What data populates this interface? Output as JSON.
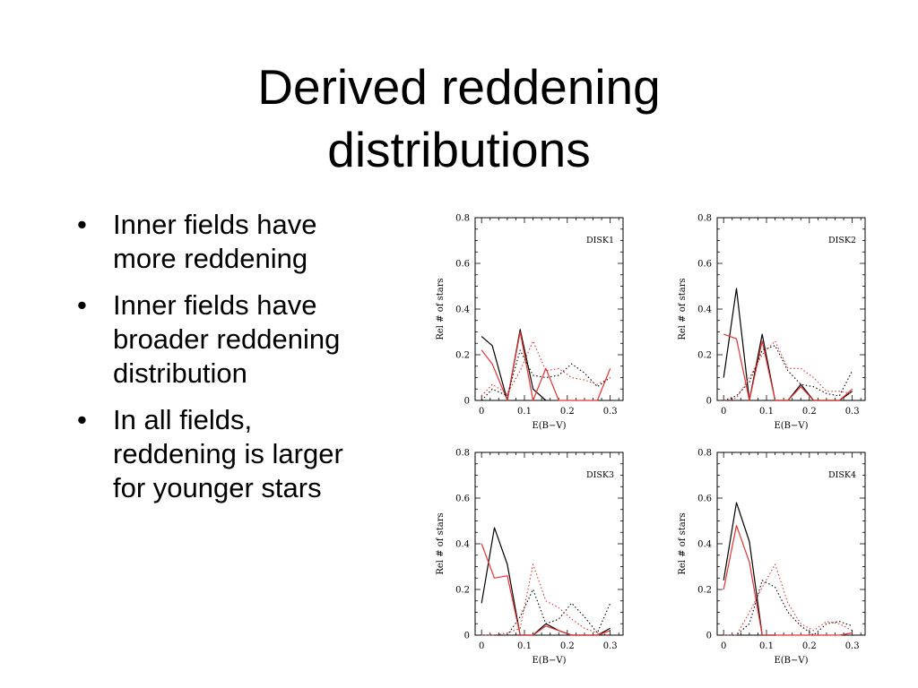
{
  "slide": {
    "title_lines": [
      "Derived reddening",
      "distributions"
    ],
    "bullets": [
      {
        "lines": [
          "Inner fields have",
          "more reddening"
        ]
      },
      {
        "lines": [
          "Inner fields have",
          "broader reddening",
          "distribution"
        ]
      },
      {
        "lines": [
          "In all fields,",
          "reddening is larger",
          "for younger stars"
        ]
      }
    ],
    "bullet_glyph": "•"
  },
  "chart_data": [
    {
      "type": "line",
      "title": "DISK1",
      "xlabel": "E(B−V)",
      "ylabel": "Rel # of stars",
      "xlim": [
        -0.015,
        0.33
      ],
      "ylim": [
        0,
        0.8
      ],
      "xticks": [
        0,
        0.1,
        0.2,
        0.3
      ],
      "xtick_labels": [
        "0",
        "0.1",
        "0.2",
        "0.3"
      ],
      "yticks": [
        0,
        0.2,
        0.4,
        0.6,
        0.8
      ],
      "ytick_labels": [
        "0",
        "0.2",
        "0.4",
        "0.6",
        "0.8"
      ],
      "series": [
        {
          "color": "#000000",
          "dash": "solid",
          "x": [
            0,
            0.025,
            0.06,
            0.09,
            0.12,
            0.15
          ],
          "y": [
            0.28,
            0.24,
            0.0,
            0.31,
            0.05,
            0.0
          ]
        },
        {
          "color": "#e8302e",
          "dash": "solid",
          "x": [
            0,
            0.025,
            0.06,
            0.09,
            0.12,
            0.15,
            0.18,
            0.21,
            0.24,
            0.27,
            0.3
          ],
          "y": [
            0.22,
            0.16,
            0.0,
            0.3,
            0.0,
            0.14,
            0.0,
            0.0,
            0.0,
            0.0,
            0.14
          ]
        },
        {
          "color": "#000000",
          "dash": "dotted",
          "x": [
            0,
            0.025,
            0.06,
            0.09,
            0.12,
            0.15,
            0.18,
            0.21,
            0.24,
            0.27,
            0.3
          ],
          "y": [
            0.0,
            0.05,
            0.02,
            0.22,
            0.11,
            0.1,
            0.11,
            0.16,
            0.12,
            0.06,
            0.1
          ]
        },
        {
          "color": "#e8302e",
          "dash": "dotted",
          "x": [
            0,
            0.025,
            0.06,
            0.09,
            0.12,
            0.15,
            0.18,
            0.21,
            0.24,
            0.27,
            0.3
          ],
          "y": [
            0.02,
            0.07,
            0.03,
            0.13,
            0.26,
            0.13,
            0.14,
            0.1,
            0.09,
            0.07,
            0.1
          ]
        }
      ]
    },
    {
      "type": "line",
      "title": "DISK2",
      "xlabel": "E(B−V)",
      "ylabel": "Rel # of stars",
      "xlim": [
        -0.015,
        0.33
      ],
      "ylim": [
        0,
        0.8
      ],
      "xticks": [
        0,
        0.1,
        0.2,
        0.3
      ],
      "xtick_labels": [
        "0",
        "0.1",
        "0.2",
        "0.3"
      ],
      "yticks": [
        0,
        0.2,
        0.4,
        0.6,
        0.8
      ],
      "ytick_labels": [
        "0",
        "0.2",
        "0.4",
        "0.6",
        "0.8"
      ],
      "series": [
        {
          "color": "#000000",
          "dash": "solid",
          "x": [
            0,
            0.03,
            0.06,
            0.09,
            0.12,
            0.15,
            0.18,
            0.21,
            0.24,
            0.27,
            0.3
          ],
          "y": [
            0.1,
            0.49,
            0.0,
            0.29,
            0.0,
            0.0,
            0.07,
            0.0,
            0.0,
            0.0,
            0.04
          ]
        },
        {
          "color": "#e8302e",
          "dash": "solid",
          "x": [
            0,
            0.03,
            0.06,
            0.09,
            0.12,
            0.15,
            0.18,
            0.21,
            0.24,
            0.27,
            0.3
          ],
          "y": [
            0.29,
            0.27,
            0.0,
            0.26,
            0.0,
            0.0,
            0.06,
            0.0,
            0.0,
            0.0,
            0.05
          ]
        },
        {
          "color": "#000000",
          "dash": "dotted",
          "x": [
            0,
            0.03,
            0.06,
            0.09,
            0.12,
            0.15,
            0.18,
            0.21,
            0.24,
            0.27,
            0.3
          ],
          "y": [
            0.0,
            0.02,
            0.08,
            0.22,
            0.24,
            0.13,
            0.07,
            0.06,
            0.03,
            0.02,
            0.13
          ]
        },
        {
          "color": "#e8302e",
          "dash": "dotted",
          "x": [
            0,
            0.03,
            0.06,
            0.09,
            0.12,
            0.15,
            0.18,
            0.21,
            0.24,
            0.27,
            0.3
          ],
          "y": [
            0.0,
            0.01,
            0.1,
            0.2,
            0.26,
            0.14,
            0.14,
            0.1,
            0.04,
            0.04,
            0.03
          ]
        }
      ]
    },
    {
      "type": "line",
      "title": "DISK3",
      "xlabel": "E(B−V)",
      "ylabel": "Rel # of stars",
      "xlim": [
        -0.015,
        0.33
      ],
      "ylim": [
        0,
        0.8
      ],
      "xticks": [
        0,
        0.1,
        0.2,
        0.3
      ],
      "xtick_labels": [
        "0",
        "0.1",
        "0.2",
        "0.3"
      ],
      "yticks": [
        0,
        0.2,
        0.4,
        0.6,
        0.8
      ],
      "ytick_labels": [
        "0",
        "0.2",
        "0.4",
        "0.6",
        "0.8"
      ],
      "series": [
        {
          "color": "#000000",
          "dash": "solid",
          "x": [
            0,
            0.03,
            0.06,
            0.09,
            0.12,
            0.15,
            0.18,
            0.21,
            0.24,
            0.27,
            0.3
          ],
          "y": [
            0.14,
            0.47,
            0.31,
            0.0,
            0.0,
            0.05,
            0.02,
            0.0,
            0.0,
            0.0,
            0.03
          ]
        },
        {
          "color": "#e8302e",
          "dash": "solid",
          "x": [
            0,
            0.03,
            0.06,
            0.09,
            0.12,
            0.15,
            0.18,
            0.21,
            0.24,
            0.27,
            0.3
          ],
          "y": [
            0.4,
            0.25,
            0.26,
            0.0,
            0.0,
            0.04,
            0.02,
            0.0,
            0.0,
            0.0,
            0.02
          ]
        },
        {
          "color": "#000000",
          "dash": "dotted",
          "x": [
            0,
            0.03,
            0.06,
            0.09,
            0.12,
            0.15,
            0.18,
            0.21,
            0.24,
            0.27,
            0.3
          ],
          "y": [
            0.0,
            0.0,
            0.0,
            0.08,
            0.2,
            0.05,
            0.07,
            0.14,
            0.08,
            0.01,
            0.14
          ]
        },
        {
          "color": "#e8302e",
          "dash": "dotted",
          "x": [
            0,
            0.03,
            0.06,
            0.09,
            0.12,
            0.15,
            0.18,
            0.21,
            0.24,
            0.27,
            0.3
          ],
          "y": [
            0.0,
            0.0,
            0.01,
            0.03,
            0.31,
            0.15,
            0.12,
            0.07,
            0.03,
            0.01,
            0.0
          ]
        }
      ]
    },
    {
      "type": "line",
      "title": "DISK4",
      "xlabel": "E(B−V)",
      "ylabel": "Rel # of stars",
      "xlim": [
        -0.015,
        0.33
      ],
      "ylim": [
        0,
        0.8
      ],
      "xticks": [
        0,
        0.1,
        0.2,
        0.3
      ],
      "xtick_labels": [
        "0",
        "0.1",
        "0.2",
        "0.3"
      ],
      "yticks": [
        0,
        0.2,
        0.4,
        0.6,
        0.8
      ],
      "ytick_labels": [
        "0",
        "0.2",
        "0.4",
        "0.6",
        "0.8"
      ],
      "series": [
        {
          "color": "#000000",
          "dash": "solid",
          "x": [
            0,
            0.03,
            0.06,
            0.09,
            0.12
          ],
          "y": [
            0.24,
            0.58,
            0.41,
            0.0,
            0.0
          ]
        },
        {
          "color": "#e8302e",
          "dash": "solid",
          "x": [
            0,
            0.03,
            0.06,
            0.09,
            0.12,
            0.15,
            0.18,
            0.21,
            0.24,
            0.27,
            0.3
          ],
          "y": [
            0.2,
            0.48,
            0.32,
            0.0,
            0.0,
            0.0,
            0.0,
            0.0,
            0.0,
            0.0,
            0.01
          ]
        },
        {
          "color": "#000000",
          "dash": "dotted",
          "x": [
            0,
            0.03,
            0.06,
            0.09,
            0.12,
            0.15,
            0.18,
            0.21,
            0.24,
            0.27,
            0.3
          ],
          "y": [
            0.0,
            0.0,
            0.05,
            0.24,
            0.21,
            0.1,
            0.04,
            0.0,
            0.05,
            0.06,
            0.04
          ]
        },
        {
          "color": "#e8302e",
          "dash": "dotted",
          "x": [
            0,
            0.03,
            0.06,
            0.09,
            0.12,
            0.15,
            0.18,
            0.21,
            0.24,
            0.27,
            0.3
          ],
          "y": [
            0.0,
            0.0,
            0.1,
            0.21,
            0.31,
            0.14,
            0.05,
            0.02,
            0.06,
            0.05,
            0.02
          ]
        }
      ]
    }
  ]
}
